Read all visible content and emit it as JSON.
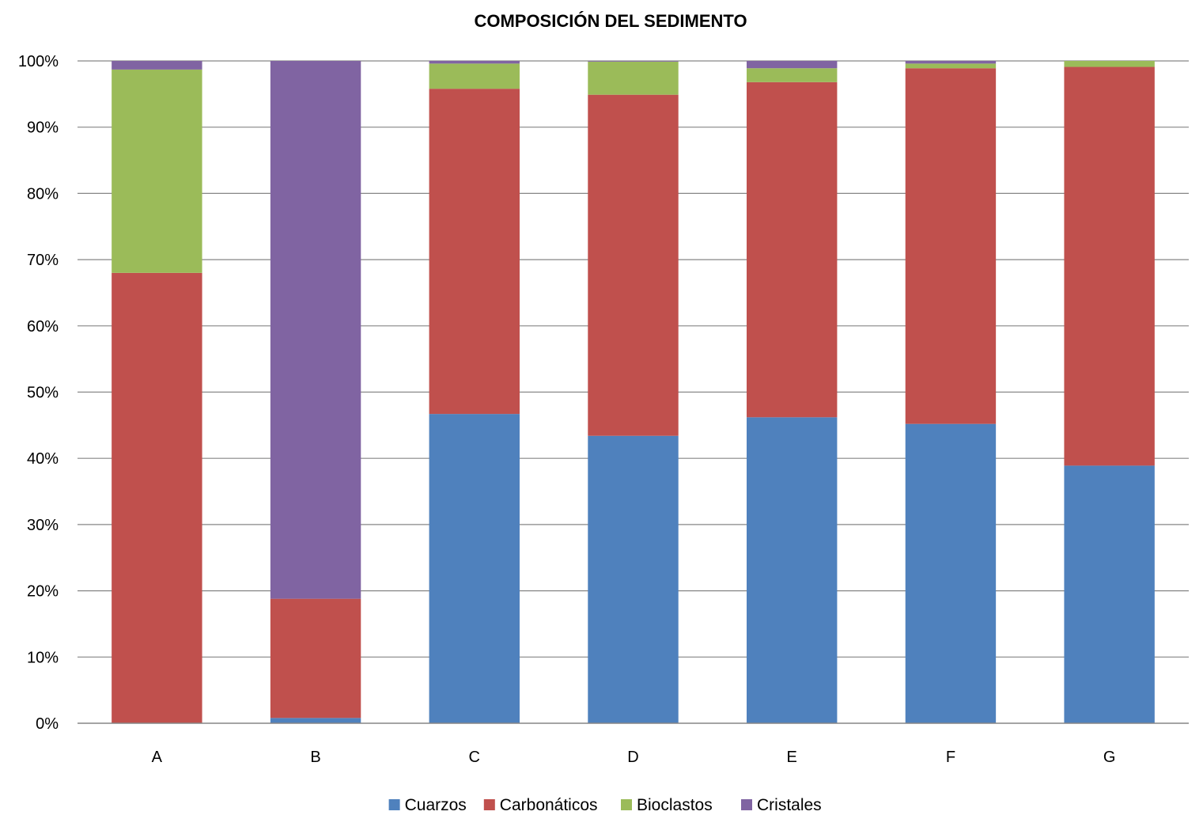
{
  "chart_data": {
    "type": "bar",
    "stacked": "percent",
    "title": "COMPOSICIÓN DEL SEDIMENTO",
    "xlabel": "",
    "ylabel": "",
    "ylim": [
      0,
      100
    ],
    "grid": true,
    "legend_position": "bottom",
    "y_ticks": [
      "0%",
      "10%",
      "20%",
      "30%",
      "40%",
      "50%",
      "60%",
      "70%",
      "80%",
      "90%",
      "100%"
    ],
    "categories": [
      "A",
      "B",
      "C",
      "D",
      "E",
      "F",
      "G"
    ],
    "series": [
      {
        "name": "Cuarzos",
        "color": "#4F81BD",
        "values": [
          0,
          0.8,
          46.7,
          43.4,
          46.2,
          45.2,
          38.9
        ]
      },
      {
        "name": "Carbonáticos",
        "color": "#C0504D",
        "values": [
          68.0,
          18.0,
          49.1,
          51.5,
          50.6,
          53.7,
          60.2
        ]
      },
      {
        "name": "Bioclastos",
        "color": "#9BBB59",
        "values": [
          30.7,
          0,
          3.8,
          5.0,
          2.1,
          0.7,
          0.9
        ]
      },
      {
        "name": "Cristales",
        "color": "#8064A2",
        "values": [
          1.3,
          81.2,
          0.4,
          0.1,
          1.1,
          0.4,
          0
        ]
      }
    ]
  }
}
